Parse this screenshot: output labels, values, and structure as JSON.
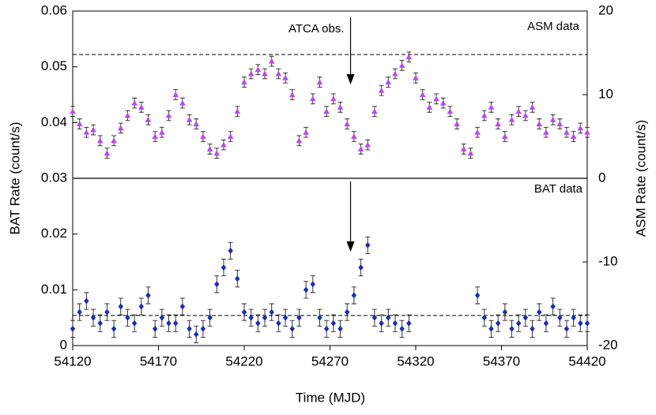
{
  "chart_data": {
    "type": "scatter",
    "xlabel": "Time (MJD)",
    "ylabel": "BAT Rate (count/s)",
    "y2label": "ASM Rate (count/s)",
    "xlim": [
      54120,
      54420
    ],
    "xticks": [
      54120,
      54170,
      54220,
      54270,
      54320,
      54370,
      54420
    ],
    "ylim": [
      0,
      0.06
    ],
    "yticks": [
      0,
      0.01,
      0.02,
      0.03,
      0.04,
      0.05,
      0.06
    ],
    "y2lim": [
      -20,
      20
    ],
    "y2ticks": [
      -20,
      -10,
      0,
      10,
      20
    ],
    "annotation": "ATCA obs.",
    "arrow_x": 54282,
    "asm_level": 14.8,
    "bat_level": 0.0054,
    "x": [
      54120,
      54124,
      54128,
      54132,
      54136,
      54140,
      54144,
      54148,
      54152,
      54156,
      54160,
      54164,
      54168,
      54172,
      54176,
      54180,
      54184,
      54188,
      54192,
      54196,
      54200,
      54204,
      54208,
      54212,
      54216,
      54220,
      54224,
      54228,
      54232,
      54236,
      54240,
      54244,
      54248,
      54252,
      54256,
      54260,
      54264,
      54268,
      54272,
      54276,
      54280,
      54284,
      54288,
      54292,
      54296,
      54300,
      54304,
      54308,
      54312,
      54316,
      54320,
      54324,
      54328,
      54332,
      54336,
      54340,
      54344,
      54348,
      54352,
      54356,
      54360,
      54364,
      54368,
      54372,
      54376,
      54380,
      54384,
      54388,
      54392,
      54396,
      54400,
      54404,
      54408,
      54412,
      54416,
      54420
    ],
    "series": [
      {
        "name": "ASM data",
        "color": "#b84ce8",
        "axis": "y2",
        "marker": "triangle",
        "error": 0.6,
        "values": [
          8,
          6.5,
          5.5,
          5.8,
          4.5,
          3,
          4.5,
          6,
          7.5,
          9,
          8.5,
          7,
          5,
          5.5,
          7.5,
          10,
          9,
          7,
          6.5,
          5,
          3.5,
          3,
          4,
          5,
          8,
          11.5,
          12.5,
          13,
          12.5,
          14,
          12.5,
          12,
          10,
          4.5,
          5.5,
          9.5,
          11.5,
          8,
          9.5,
          8.5,
          6.5,
          5,
          3.5,
          4,
          8,
          10.5,
          11.5,
          12.5,
          13.5,
          14.5,
          12,
          10,
          8.5,
          9.5,
          9,
          8,
          6.5,
          3.5,
          3,
          5.5,
          7.5,
          8.5,
          6.5,
          5,
          7,
          8,
          7.5,
          8.5,
          6.5,
          5.5,
          7,
          6.5,
          5.5,
          5,
          6,
          5.5
        ]
      },
      {
        "name": "BAT data",
        "color": "#1a2eb0",
        "axis": "y",
        "marker": "diamond",
        "error": 0.0015,
        "values": [
          0.003,
          0.006,
          0.008,
          0.005,
          0.004,
          0.006,
          0.003,
          0.007,
          0.005,
          0.004,
          0.007,
          0.009,
          0.003,
          0.005,
          0.004,
          0.004,
          0.007,
          0.003,
          0.002,
          0.003,
          0.005,
          0.011,
          0.014,
          0.017,
          0.012,
          0.006,
          0.005,
          0.004,
          0.005,
          0.006,
          0.004,
          0.005,
          0.003,
          0.005,
          0.01,
          0.011,
          0.005,
          0.003,
          0.004,
          0.003,
          0.006,
          0.009,
          0.014,
          0.018,
          0.005,
          0.004,
          0.005,
          0.004,
          0.003,
          0.004,
          null,
          null,
          null,
          null,
          null,
          null,
          null,
          null,
          null,
          0.009,
          0.005,
          0.003,
          0.004,
          0.006,
          0.003,
          0.004,
          0.005,
          0.003,
          0.006,
          0.004,
          0.007,
          0.005,
          0.003,
          0.005,
          0.004,
          0.004
        ]
      }
    ]
  }
}
